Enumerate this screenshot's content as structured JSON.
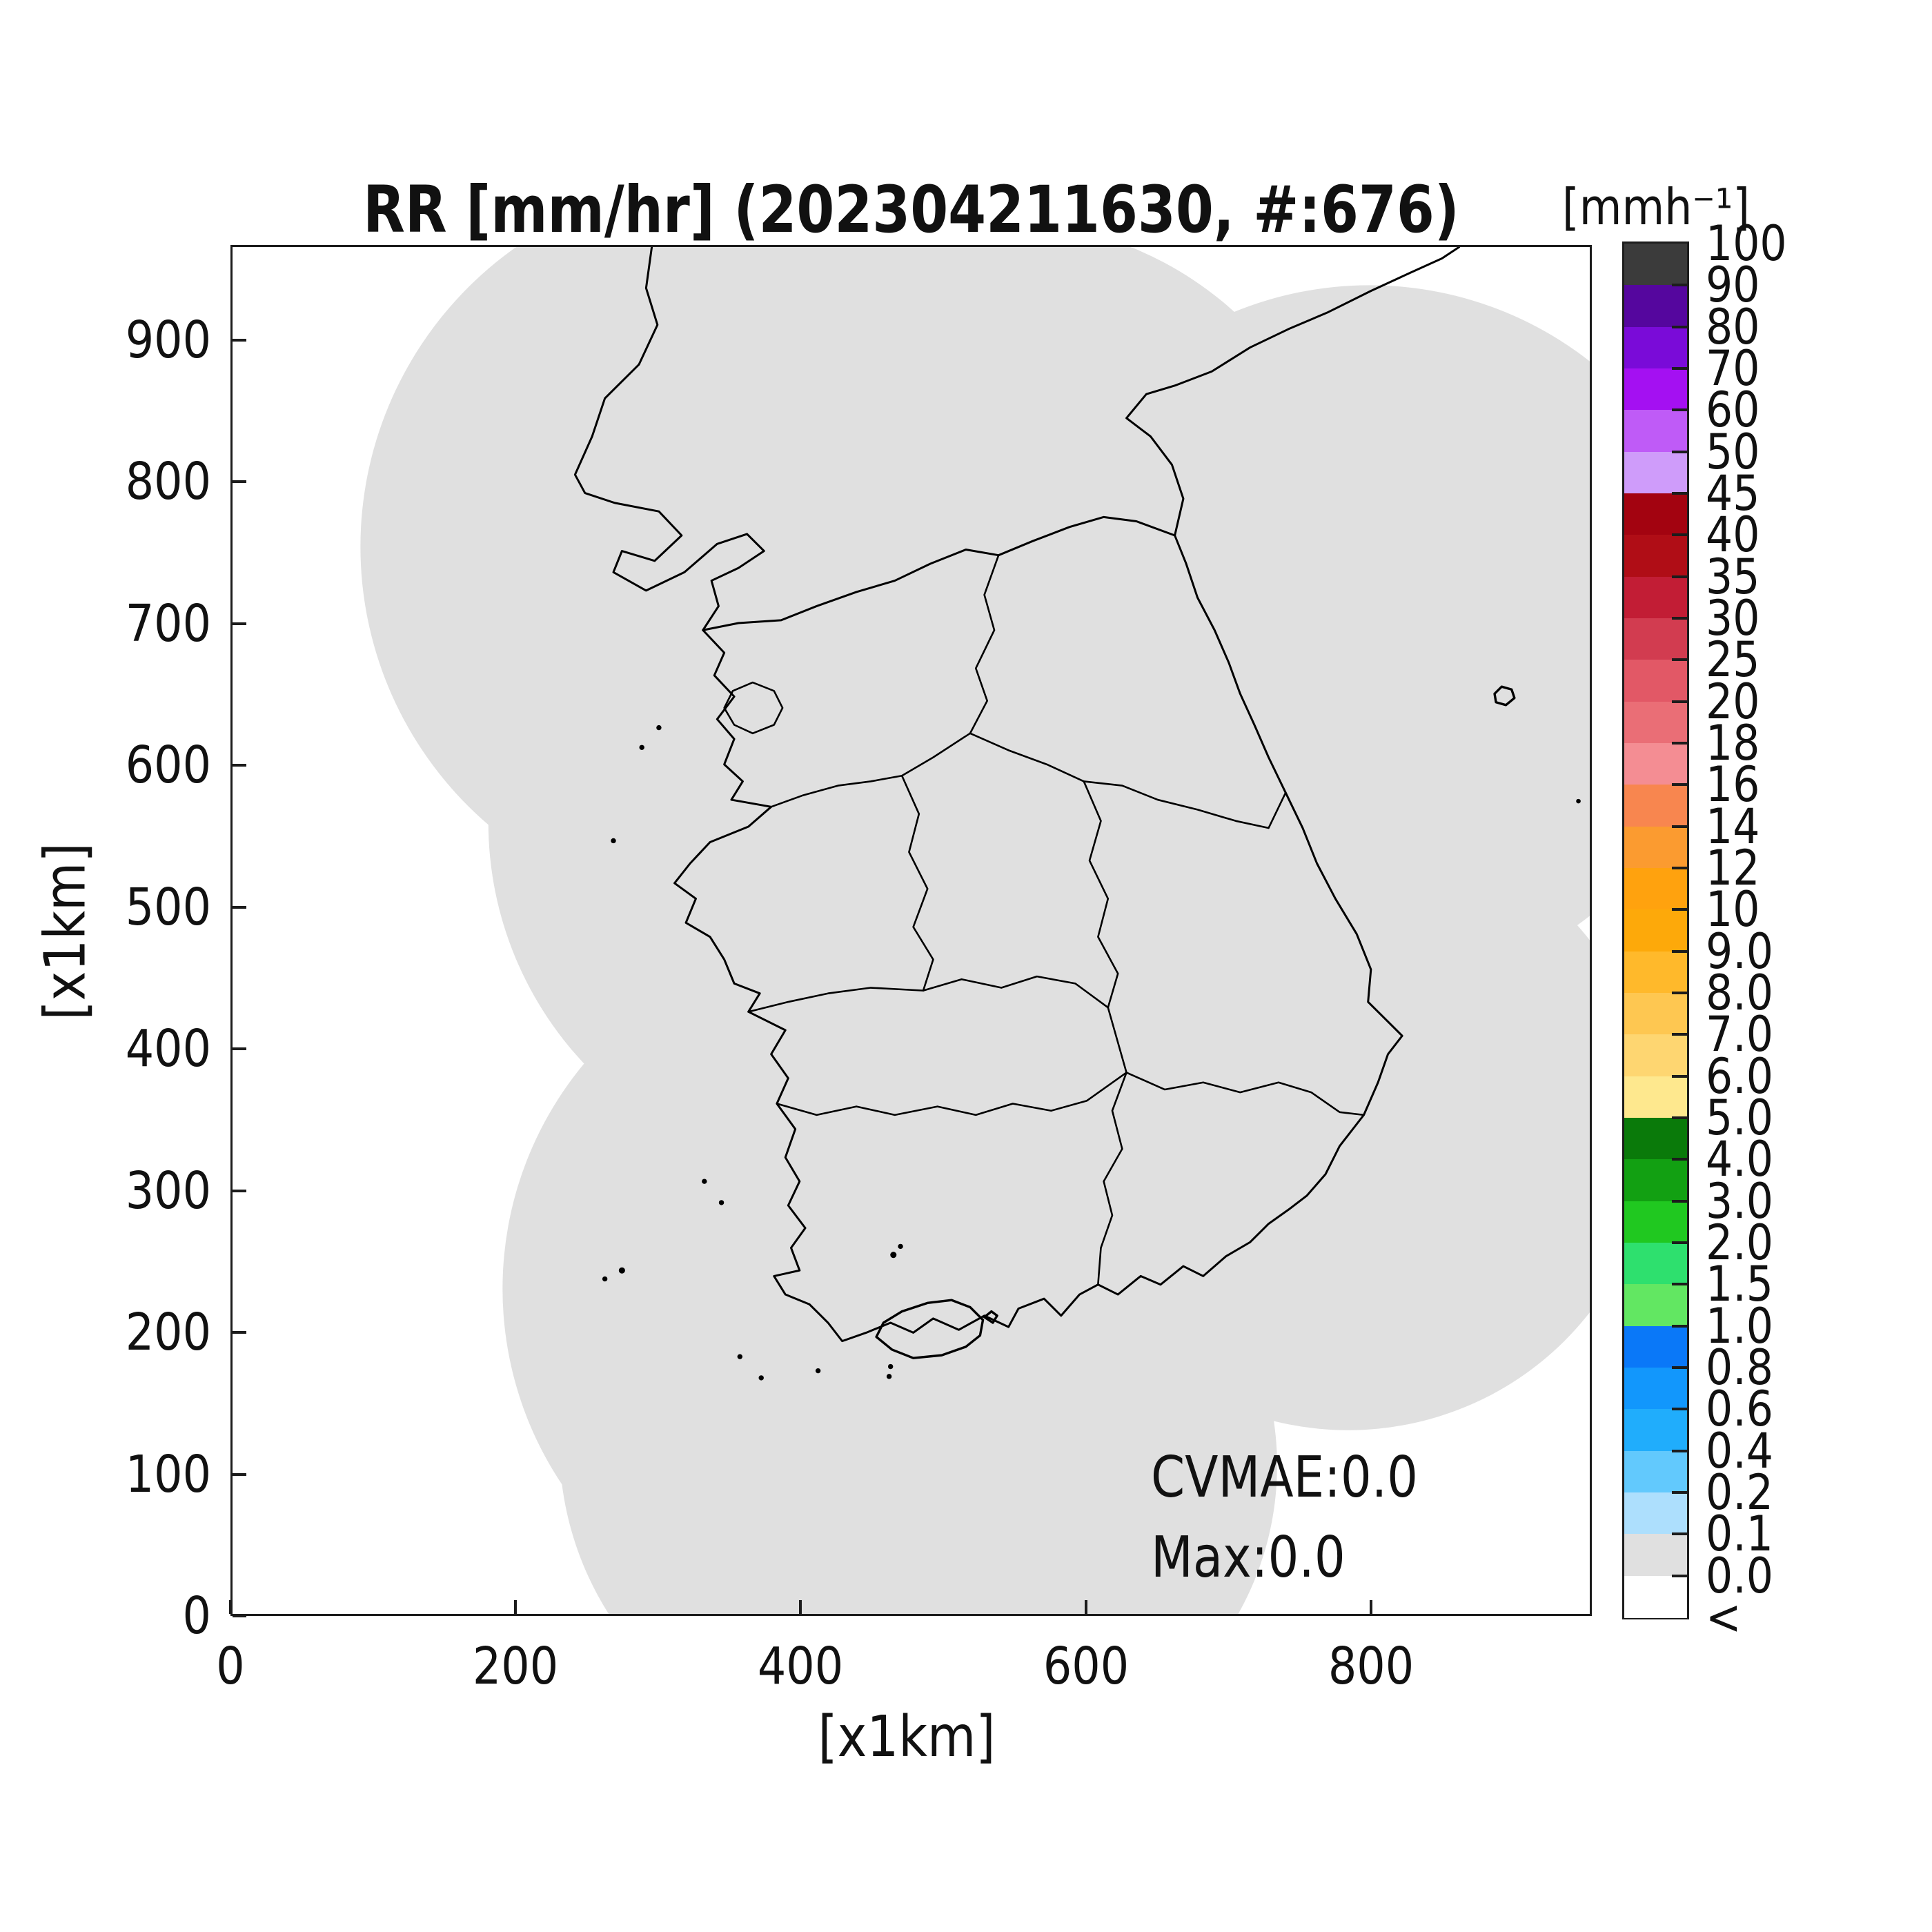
{
  "title": "RR [mm/hr] (202304211630, #:676)",
  "axes": {
    "xlabel": "[x1km]",
    "ylabel": "[x1km]",
    "x_ticks": [
      "0",
      "200",
      "400",
      "600",
      "800"
    ],
    "x_tick_values": [
      0,
      200,
      400,
      600,
      800
    ],
    "y_ticks": [
      "0",
      "100",
      "200",
      "300",
      "400",
      "500",
      "600",
      "700",
      "800",
      "900"
    ],
    "y_tick_values": [
      0,
      100,
      200,
      300,
      400,
      500,
      600,
      700,
      800,
      900
    ],
    "x_range": [
      0,
      955
    ],
    "y_range": [
      0,
      967
    ]
  },
  "annotations": {
    "cvmae": "CVMAE:0.0",
    "max": "Max:0.0"
  },
  "colorbar": {
    "title": "[mmh⁻¹]",
    "tick_labels": [
      "100",
      "90",
      "80",
      "70",
      "60",
      "50",
      "45",
      "40",
      "35",
      "30",
      "25",
      "20",
      "18",
      "16",
      "14",
      "12",
      "10",
      "9.0",
      "8.0",
      "7.0",
      "6.0",
      "5.0",
      "4.0",
      "3.0",
      "2.0",
      "1.5",
      "1.0",
      "0.8",
      "0.6",
      "0.4",
      "0.2",
      "0.1",
      "0.0",
      "<"
    ],
    "segment_colors_top_to_bottom": [
      "#3b3b3b",
      "#55069e",
      "#7a0bd8",
      "#a410f2",
      "#bf5bf7",
      "#cf9cfa",
      "#a30310",
      "#b00d16",
      "#c21d35",
      "#d23c50",
      "#e25866",
      "#ea6e76",
      "#f48d93",
      "#f8864f",
      "#fb9b30",
      "#ffa20e",
      "#fda90a",
      "#ffb92b",
      "#fec751",
      "#fed671",
      "#fee88e",
      "#0a7a0a",
      "#12a012",
      "#20c820",
      "#2ee06e",
      "#62e762",
      "#0a78f8",
      "#1297fc",
      "#20adfc",
      "#62c9fd",
      "#addffd",
      "#e0e0e0",
      "#ffffff"
    ]
  },
  "map": {
    "coverage_color": "#e0e0e0",
    "outline_color": "#000000",
    "background_color": "#ffffff"
  },
  "chart_data": {
    "type": "heatmap",
    "title": "RR [mm/hr] (202304211630, #:676)",
    "variable": "RR",
    "units": "mm/hr",
    "timestamp_label": "202304211630",
    "count_label": "#:676",
    "xlabel": "[x1km]",
    "ylabel": "[x1km]",
    "xlim": [
      0,
      955
    ],
    "ylim": [
      0,
      967
    ],
    "colorbar_label": "[mmh⁻¹]",
    "levels": [
      0.0,
      0.1,
      0.2,
      0.4,
      0.6,
      0.8,
      1.0,
      1.5,
      2.0,
      3.0,
      4.0,
      5.0,
      6.0,
      7.0,
      8.0,
      9.0,
      10,
      12,
      14,
      16,
      18,
      20,
      25,
      30,
      35,
      40,
      45,
      50,
      60,
      70,
      80,
      90,
      100
    ],
    "field_summary": "Rain-rate field over the Korean peninsula radar composite; every grid value is 0.0 mm/hr, so the whole radar coverage footprint is shaded at the 0.0 level (light gray) with no colored precipitation echoes.",
    "stats": {
      "CVMAE": 0.0,
      "Max": 0.0
    },
    "legend_position": "right vertical colorbar",
    "grid": false
  }
}
